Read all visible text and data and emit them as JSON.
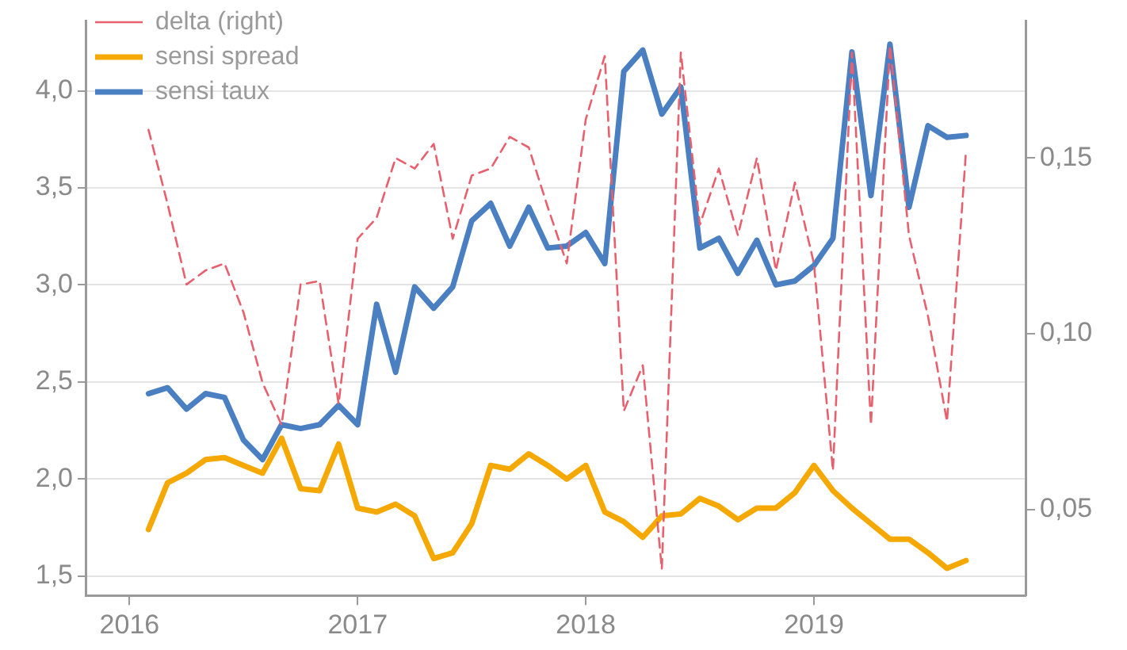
{
  "chart_data": {
    "type": "line",
    "x": [
      "2016-02",
      "2016-03",
      "2016-04",
      "2016-05",
      "2016-06",
      "2016-07",
      "2016-08",
      "2016-09",
      "2016-10",
      "2016-11",
      "2016-12",
      "2017-01",
      "2017-02",
      "2017-03",
      "2017-04",
      "2017-05",
      "2017-06",
      "2017-07",
      "2017-08",
      "2017-09",
      "2017-10",
      "2017-11",
      "2017-12",
      "2018-01",
      "2018-02",
      "2018-03",
      "2018-04",
      "2018-05",
      "2018-06",
      "2018-07",
      "2018-08",
      "2018-09",
      "2018-10",
      "2018-11",
      "2018-12",
      "2019-01",
      "2019-02",
      "2019-03",
      "2019-04",
      "2019-05",
      "2019-06",
      "2019-07",
      "2019-08",
      "2019-09"
    ],
    "series": [
      {
        "name": "delta (right)",
        "color": "#e8606e",
        "axis": "y2",
        "line_style": "dashed",
        "values": [
          0.158,
          0.137,
          0.114,
          0.118,
          0.12,
          0.106,
          0.086,
          0.074,
          0.114,
          0.115,
          0.08,
          0.127,
          0.133,
          0.15,
          0.147,
          0.154,
          0.127,
          0.145,
          0.147,
          0.156,
          0.153,
          0.136,
          0.12,
          0.161,
          0.179,
          0.078,
          0.091,
          0.033,
          0.18,
          0.131,
          0.147,
          0.128,
          0.15,
          0.118,
          0.143,
          0.12,
          0.061,
          0.18,
          0.074,
          0.182,
          0.128,
          0.105,
          0.075,
          0.152
        ]
      },
      {
        "name": "sensi spread",
        "color": "#f5a800",
        "values": [
          1.74,
          1.98,
          2.03,
          2.1,
          2.11,
          2.07,
          2.03,
          2.21,
          1.95,
          1.94,
          2.18,
          1.85,
          1.83,
          1.87,
          1.81,
          1.59,
          1.62,
          1.77,
          2.07,
          2.05,
          2.13,
          2.07,
          2.0,
          2.07,
          1.83,
          1.78,
          1.7,
          1.81,
          1.82,
          1.9,
          1.86,
          1.79,
          1.85,
          1.85,
          1.93,
          2.07,
          1.94,
          1.85,
          1.77,
          1.69,
          1.69,
          1.62,
          1.54,
          1.58
        ]
      },
      {
        "name": "sensi taux",
        "color": "#4a7fc1",
        "values": [
          2.44,
          2.47,
          2.36,
          2.44,
          2.42,
          2.2,
          2.1,
          2.28,
          2.26,
          2.28,
          2.38,
          2.28,
          2.9,
          2.55,
          2.99,
          2.88,
          2.99,
          3.33,
          3.42,
          3.2,
          3.4,
          3.19,
          3.2,
          3.27,
          3.11,
          4.1,
          4.21,
          3.88,
          4.02,
          3.19,
          3.24,
          3.06,
          3.23,
          3.0,
          3.02,
          3.1,
          3.24,
          4.2,
          3.46,
          4.24,
          3.4,
          3.82,
          3.76,
          3.77
        ]
      }
    ],
    "xlim": [
      "2015-10-22",
      "2019-12-05"
    ],
    "xticks": [
      "2016",
      "2017",
      "2018",
      "2019"
    ],
    "ylim": [
      1.4,
      4.36
    ],
    "yticks": [
      {
        "value": 1.5,
        "label": "1,5"
      },
      {
        "value": 2.0,
        "label": "2,0"
      },
      {
        "value": 2.5,
        "label": "2,5"
      },
      {
        "value": 3.0,
        "label": "3,0"
      },
      {
        "value": 3.5,
        "label": "3,5"
      },
      {
        "value": 4.0,
        "label": "4,0"
      }
    ],
    "y2lim": [
      0.0255,
      0.189
    ],
    "y2ticks": [
      {
        "value": 0.05,
        "label": "0,05"
      },
      {
        "value": 0.1,
        "label": "0,10"
      },
      {
        "value": 0.15,
        "label": "0,15"
      }
    ],
    "grid": "y",
    "legend": "top left"
  }
}
